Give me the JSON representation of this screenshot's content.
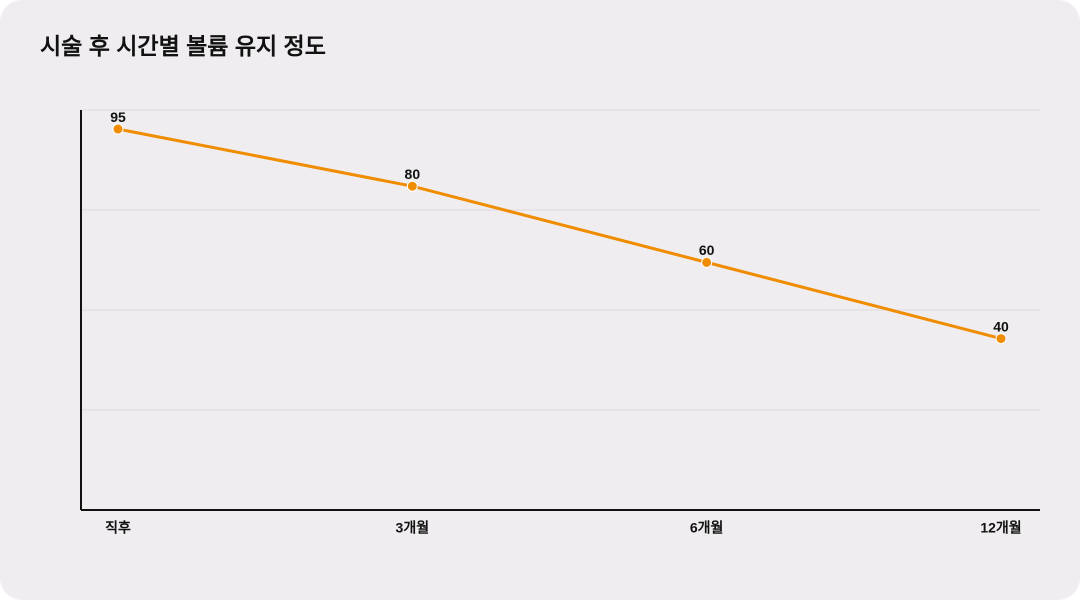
{
  "chart_data": {
    "type": "line",
    "title": "시술 후 시간별 볼륨 유지 정도",
    "categories": [
      "직후",
      "3개월",
      "6개월",
      "12개월"
    ],
    "values": [
      95,
      80,
      60,
      40
    ],
    "color": "#f08c00",
    "ylim": [
      -5,
      100
    ],
    "grid": true,
    "data_labels": true
  }
}
